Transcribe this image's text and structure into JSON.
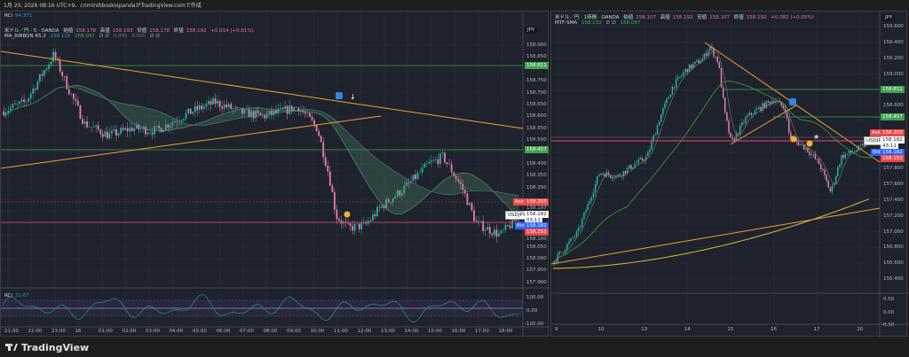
{
  "topbar": {
    "text": "1月 20, 2026 08:16 UTC+9、criminibboskoipandaがTradingView.comで作成"
  },
  "left": {
    "rci_top": {
      "label": "RCI",
      "value": "54.371"
    },
    "symbol": "米ドル／円 · 5 · OANDA",
    "ohlc": {
      "open_label": "始値",
      "open": "158.178",
      "high_label": "高値",
      "high": "158.193",
      "low_label": "安値",
      "low": "158.178",
      "close_label": "終値",
      "close": "158.192",
      "change": "+0.014 (+0.01%)"
    },
    "indicator": {
      "name": "MA_RIBBON R5.2",
      "v1": "158.118",
      "v2": "158.097",
      "v3": "∅ ∅",
      "v4": "0.000",
      "v5": "0.000",
      "v6": "∅ ∅"
    },
    "currency": "JPY",
    "price_ticks": [
      "158.900",
      "158.850",
      "158.750",
      "158.700",
      "158.650",
      "158.600",
      "158.550",
      "158.500",
      "158.400",
      "158.350",
      "158.300",
      "158.050",
      "158.000",
      "157.950",
      "157.900"
    ],
    "level_tags": [
      {
        "value": "158.811",
        "color": "#3fa34d"
      },
      {
        "value": "158.457",
        "color": "#3fa34d"
      }
    ],
    "ask": {
      "label": "Ask",
      "value": "158.203"
    },
    "ask2": "158.197",
    "last": {
      "symbol": "USDJPY",
      "value": "158.182",
      "countdown": "03:11"
    },
    "bid": {
      "label": "Bid",
      "value": "158.182"
    },
    "bid2": "158.152",
    "below": "158.100",
    "rci_pane": {
      "label": "RCI",
      "value": "21.67",
      "ticks": [
        "100.00",
        "0.00",
        "-100.00"
      ]
    },
    "time_ticks": [
      "21:00",
      "22:00",
      "23:00",
      "16",
      "01:00",
      "02:00",
      "03:00",
      "04:00",
      "05:00",
      "06:00",
      "07:00",
      "08:00",
      "09:00",
      "10:00",
      "11:00",
      "12:00",
      "13:00",
      "14:00",
      "15:00",
      "16:00",
      "17:00",
      "18:00"
    ]
  },
  "right": {
    "symbol": "米ドル／円 · 1時間 · OANDA",
    "ohlc": {
      "open_label": "始値",
      "open": "158.107",
      "high_label": "高値",
      "high": "158.193",
      "low_label": "安値",
      "low": "158.107",
      "close_label": "終値",
      "close": "158.192",
      "change": "+0.082 (+0.05%)"
    },
    "indicator": {
      "name": "MTF-SMA",
      "v1": "158.232",
      "v2": "∅ ∅",
      "v3": "158.097"
    },
    "currency": "JPY",
    "price_ticks": [
      "159.600",
      "159.400",
      "159.200",
      "159.000",
      "158.600",
      "157.800",
      "157.600",
      "157.400",
      "157.200",
      "157.000",
      "156.800",
      "156.600",
      "156.400"
    ],
    "level_tags": [
      {
        "value": "158.811",
        "color": "#3fa34d"
      },
      {
        "value": "158.457",
        "color": "#3fa34d"
      }
    ],
    "ask": {
      "label": "Ask",
      "value": "158.203"
    },
    "last": {
      "symbol": "USDJPY",
      "value": "158.182",
      "countdown": "43:11"
    },
    "bid": {
      "label": "Bid",
      "value": "158.182"
    },
    "bid2": "158.152",
    "lower_ticks": [
      "0.50",
      "0.00",
      "-0.50"
    ],
    "time_ticks": [
      "9",
      "10",
      "13",
      "14",
      "15",
      "16",
      "17",
      "20"
    ]
  },
  "colors": {
    "up": "#2ab3a0",
    "down": "#ea7fb0",
    "background": "#1e222d",
    "grid": "#2a2e39",
    "trend": "#f0a030",
    "ribbon": "#4a9a70"
  },
  "logo": {
    "text": "TradingView"
  },
  "chart_data": [
    {
      "type": "candlestick",
      "name": "USDJPY 5m",
      "x_unit": "hours from 21:00",
      "path": [
        [
          0,
          158.62
        ],
        [
          1,
          158.66
        ],
        [
          2.2,
          158.86
        ],
        [
          2.8,
          158.72
        ],
        [
          3.5,
          158.57
        ],
        [
          4.5,
          158.52
        ],
        [
          5.5,
          158.55
        ],
        [
          6.5,
          158.54
        ],
        [
          8,
          158.62
        ],
        [
          9,
          158.66
        ],
        [
          10,
          158.62
        ],
        [
          11,
          158.6
        ],
        [
          12.5,
          158.64
        ],
        [
          13.3,
          158.55
        ],
        [
          13.8,
          158.35
        ],
        [
          14.1,
          158.18
        ],
        [
          14.6,
          158.13
        ],
        [
          15.3,
          158.14
        ],
        [
          16,
          158.22
        ],
        [
          17,
          158.3
        ],
        [
          18,
          158.4
        ],
        [
          18.6,
          158.43
        ],
        [
          19.4,
          158.3
        ],
        [
          20,
          158.15
        ],
        [
          21,
          158.1
        ],
        [
          21.8,
          158.18
        ]
      ],
      "ylim": [
        157.88,
        158.92
      ]
    },
    {
      "type": "candlestick",
      "name": "USDJPY 1h",
      "x_unit": "trading days from 9",
      "path": [
        [
          0,
          156.6
        ],
        [
          0.6,
          157.0
        ],
        [
          1.1,
          157.75
        ],
        [
          1.5,
          157.7
        ],
        [
          1.9,
          157.85
        ],
        [
          2.2,
          157.95
        ],
        [
          2.5,
          158.45
        ],
        [
          2.8,
          158.85
        ],
        [
          3.1,
          159.05
        ],
        [
          3.5,
          159.2
        ],
        [
          3.65,
          159.35
        ],
        [
          3.85,
          159.15
        ],
        [
          4.0,
          158.5
        ],
        [
          4.15,
          158.12
        ],
        [
          4.5,
          158.45
        ],
        [
          4.9,
          158.6
        ],
        [
          5.15,
          158.68
        ],
        [
          5.4,
          158.55
        ],
        [
          5.5,
          158.2
        ],
        [
          5.9,
          158.05
        ],
        [
          6.2,
          157.85
        ],
        [
          6.45,
          157.5
        ],
        [
          6.7,
          157.95
        ],
        [
          7.1,
          158.05
        ],
        [
          7.4,
          158.18
        ]
      ],
      "ylim": [
        156.3,
        159.7
      ]
    }
  ]
}
